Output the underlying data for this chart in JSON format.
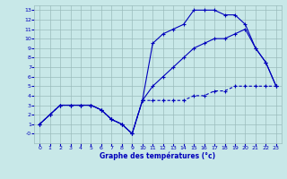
{
  "title": "Graphe des températures (°c)",
  "background_color": "#c8e8e8",
  "grid_color": "#9bbcbc",
  "line_color": "#0000bb",
  "xlim": [
    -0.5,
    23.5
  ],
  "ylim": [
    -1,
    13.5
  ],
  "xticks": [
    0,
    1,
    2,
    3,
    4,
    5,
    6,
    7,
    8,
    9,
    10,
    11,
    12,
    13,
    14,
    15,
    16,
    17,
    18,
    19,
    20,
    21,
    22,
    23
  ],
  "yticks": [
    0,
    1,
    2,
    3,
    4,
    5,
    6,
    7,
    8,
    9,
    10,
    11,
    12,
    13
  ],
  "yticklabels": [
    "-0",
    "1",
    "2",
    "3",
    "4",
    "5",
    "6",
    "7",
    "8",
    "9",
    "10",
    "11",
    "12",
    "13"
  ],
  "curve_upper": {
    "x": [
      0,
      1,
      2,
      3,
      4,
      5,
      6,
      7,
      8,
      9,
      10,
      11,
      12,
      13,
      14,
      15,
      16,
      17,
      18,
      19,
      20,
      21,
      22,
      23
    ],
    "y": [
      1,
      2,
      3,
      3,
      3,
      3,
      2.5,
      1.5,
      1,
      0,
      3.5,
      9.5,
      10.5,
      11,
      11.5,
      13,
      13,
      13,
      12.5,
      12.5,
      11.5,
      9,
      7.5,
      5
    ]
  },
  "curve_middle": {
    "x": [
      0,
      1,
      2,
      3,
      4,
      5,
      6,
      7,
      8,
      9,
      10,
      11,
      12,
      13,
      14,
      15,
      16,
      17,
      18,
      19,
      20,
      21,
      22,
      23
    ],
    "y": [
      1,
      2,
      3,
      3,
      3,
      3,
      2.5,
      1.5,
      1,
      0,
      3.5,
      5,
      6,
      7,
      8,
      9,
      9.5,
      10,
      10,
      10.5,
      11,
      9,
      7.5,
      5
    ]
  },
  "curve_lower": {
    "x": [
      0,
      1,
      2,
      3,
      4,
      5,
      6,
      7,
      8,
      9,
      10,
      11,
      12,
      13,
      14,
      15,
      16,
      17,
      18,
      19,
      20,
      21,
      22,
      23
    ],
    "y": [
      1,
      2,
      3,
      3,
      3,
      3,
      2.5,
      1.5,
      1,
      0,
      3.5,
      3.5,
      3.5,
      3.5,
      3.5,
      4,
      4,
      4.5,
      4.5,
      5,
      5,
      5,
      5,
      5
    ]
  }
}
